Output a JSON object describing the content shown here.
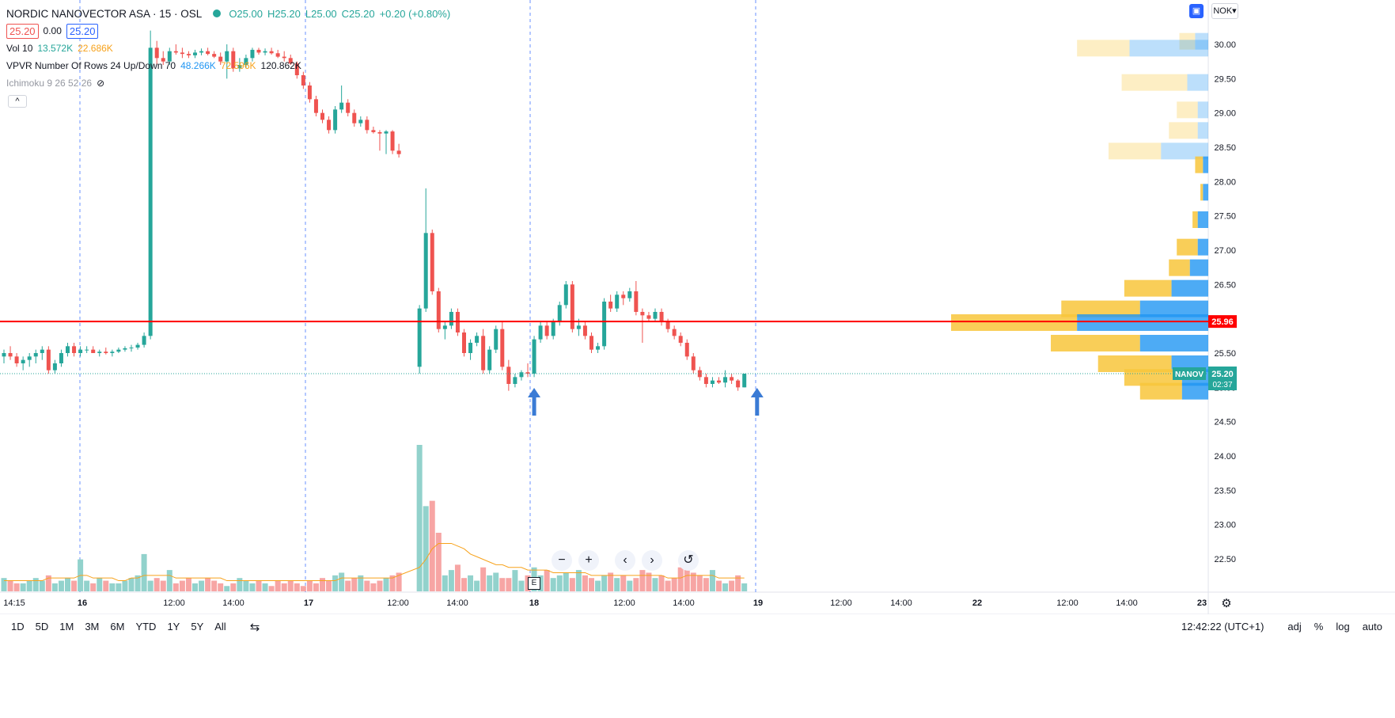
{
  "legend": {
    "title": "NORDIC NANOVECTOR ASA · 15 · OSL",
    "ohlc": {
      "o": "O25.00",
      "h": "H25.20",
      "l": "L25.00",
      "c": "C25.20",
      "chg": "+0.20 (+0.80%)"
    },
    "bid": "25.20",
    "spread": "0.00",
    "ask": "25.20",
    "vol_label": "Vol 10",
    "vol_v1": "13.572K",
    "vol_v2": "22.686K",
    "vpvr_label": "VPVR Number Of Rows 24 Up/Down 70",
    "vpvr_v1": "48.266K",
    "vpvr_v2": "72.596K",
    "vpvr_v3": "120.862K",
    "ichimoku_label": "Ichimoku 9 26 52 26"
  },
  "currency": "NOK",
  "navigation": {
    "zoom_out": "−",
    "zoom_in": "+",
    "left": "‹",
    "right": "›",
    "reset": "↺"
  },
  "event_badge": "E",
  "colors": {
    "up": "#26a69a",
    "down": "#ef5350",
    "vol_up": "#92d2cc",
    "vol_down": "#f7a5a4",
    "vp_up": "#2196f3",
    "vp_down": "#f8c63b",
    "line": "#ff0000",
    "vol_ma": "#f7a21b"
  },
  "timeframes": [
    "1D",
    "5D",
    "1M",
    "3M",
    "6M",
    "YTD",
    "1Y",
    "5Y",
    "All"
  ],
  "status": {
    "clock": "12:42:22 (UTC+1)",
    "adj": "adj",
    "pct": "%",
    "log": "log",
    "auto": "auto"
  },
  "chart_data": {
    "type": "candlestick",
    "yaxis_ticks": [
      "30.00",
      "29.50",
      "29.00",
      "28.50",
      "28.00",
      "27.50",
      "27.00",
      "26.50",
      "26.00",
      "25.50",
      "25.00",
      "24.50",
      "24.00",
      "23.50",
      "23.00",
      "22.50"
    ],
    "ylim": [
      22.2,
      30.3
    ],
    "xaxis_ticks": [
      "14:15",
      "16",
      "12:00",
      "14:00",
      "17",
      "12:00",
      "14:00",
      "18",
      "12:00",
      "14:00",
      "19",
      "12:00",
      "14:00",
      "22",
      "12:00",
      "14:00",
      "23"
    ],
    "horizontal_line": {
      "value": 25.96,
      "label": "25.96"
    },
    "last_price": {
      "value": 25.2,
      "symbol": "NANOV",
      "label": "25.20",
      "countdown": "02:37"
    },
    "candles": [
      [
        25.45,
        25.55,
        25.35,
        25.5
      ],
      [
        25.5,
        25.6,
        25.4,
        25.45
      ],
      [
        25.45,
        25.5,
        25.3,
        25.35
      ],
      [
        25.35,
        25.45,
        25.25,
        25.4
      ],
      [
        25.4,
        25.5,
        25.3,
        25.45
      ],
      [
        25.45,
        25.55,
        25.35,
        25.5
      ],
      [
        25.5,
        25.6,
        25.4,
        25.55
      ],
      [
        25.55,
        25.6,
        25.2,
        25.25
      ],
      [
        25.25,
        25.4,
        25.2,
        25.35
      ],
      [
        25.35,
        25.55,
        25.3,
        25.5
      ],
      [
        25.5,
        25.65,
        25.45,
        25.6
      ],
      [
        25.6,
        25.65,
        25.45,
        25.5
      ],
      [
        25.5,
        25.6,
        25.45,
        25.55
      ],
      [
        25.55,
        25.6,
        25.5,
        25.55
      ],
      [
        25.55,
        25.6,
        25.5,
        25.5
      ],
      [
        25.5,
        25.55,
        25.45,
        25.52
      ],
      [
        25.52,
        25.58,
        25.48,
        25.5
      ],
      [
        25.5,
        25.55,
        25.45,
        25.52
      ],
      [
        25.52,
        25.58,
        25.5,
        25.55
      ],
      [
        25.55,
        25.6,
        25.52,
        25.57
      ],
      [
        25.57,
        25.62,
        25.52,
        25.58
      ],
      [
        25.58,
        25.65,
        25.55,
        25.62
      ],
      [
        25.62,
        25.8,
        25.58,
        25.75
      ],
      [
        25.75,
        30.2,
        25.7,
        29.95
      ],
      [
        29.95,
        30.05,
        29.7,
        29.8
      ],
      [
        29.8,
        29.9,
        29.7,
        29.75
      ],
      [
        29.75,
        29.95,
        29.7,
        29.9
      ],
      [
        29.9,
        30.0,
        29.85,
        29.88
      ],
      [
        29.88,
        29.95,
        29.8,
        29.86
      ],
      [
        29.86,
        29.9,
        29.8,
        29.84
      ],
      [
        29.84,
        29.92,
        29.8,
        29.88
      ],
      [
        29.88,
        29.94,
        29.84,
        29.9
      ],
      [
        29.9,
        29.95,
        29.84,
        29.86
      ],
      [
        29.86,
        29.9,
        29.8,
        29.82
      ],
      [
        29.82,
        29.88,
        29.7,
        29.75
      ],
      [
        29.75,
        30.0,
        29.5,
        29.9
      ],
      [
        29.9,
        29.95,
        29.6,
        29.65
      ],
      [
        29.65,
        29.8,
        29.6,
        29.7
      ],
      [
        29.7,
        29.85,
        29.65,
        29.8
      ],
      [
        29.8,
        29.95,
        29.75,
        29.92
      ],
      [
        29.92,
        29.95,
        29.85,
        29.88
      ],
      [
        29.88,
        29.94,
        29.84,
        29.9
      ],
      [
        29.9,
        29.95,
        29.85,
        29.87
      ],
      [
        29.87,
        29.92,
        29.8,
        29.82
      ],
      [
        29.82,
        29.9,
        29.75,
        29.8
      ],
      [
        29.8,
        29.85,
        29.7,
        29.72
      ],
      [
        29.72,
        29.75,
        29.5,
        29.55
      ],
      [
        29.55,
        29.6,
        29.35,
        29.4
      ],
      [
        29.4,
        29.45,
        29.15,
        29.2
      ],
      [
        29.2,
        29.25,
        28.95,
        29.0
      ],
      [
        29.0,
        29.05,
        28.85,
        28.9
      ],
      [
        28.9,
        28.95,
        28.7,
        28.75
      ],
      [
        28.75,
        29.1,
        28.7,
        29.05
      ],
      [
        29.05,
        29.4,
        29.0,
        29.15
      ],
      [
        29.15,
        29.2,
        28.95,
        29.0
      ],
      [
        29.0,
        29.05,
        28.8,
        28.85
      ],
      [
        28.85,
        28.95,
        28.8,
        28.9
      ],
      [
        28.9,
        28.95,
        28.7,
        28.75
      ],
      [
        28.75,
        28.8,
        28.7,
        28.72
      ],
      [
        28.72,
        28.75,
        28.45,
        28.7
      ],
      [
        28.7,
        28.75,
        28.4,
        28.73
      ],
      [
        28.73,
        28.75,
        28.4,
        28.45
      ],
      [
        28.45,
        28.55,
        28.35,
        28.4
      ],
      [
        25.3,
        26.2,
        25.2,
        26.15
      ],
      [
        26.15,
        27.9,
        26.1,
        27.25
      ],
      [
        27.25,
        27.3,
        26.35,
        26.4
      ],
      [
        26.4,
        26.45,
        25.8,
        25.85
      ],
      [
        25.85,
        25.95,
        25.7,
        25.9
      ],
      [
        25.9,
        26.15,
        25.85,
        26.1
      ],
      [
        26.1,
        26.15,
        25.75,
        25.8
      ],
      [
        25.8,
        25.85,
        25.45,
        25.5
      ],
      [
        25.5,
        25.7,
        25.4,
        25.65
      ],
      [
        25.65,
        25.8,
        25.6,
        25.75
      ],
      [
        25.75,
        25.85,
        25.2,
        25.25
      ],
      [
        25.25,
        25.6,
        25.2,
        25.55
      ],
      [
        25.55,
        25.9,
        25.5,
        25.85
      ],
      [
        25.85,
        25.95,
        25.25,
        25.3
      ],
      [
        25.3,
        25.4,
        24.95,
        25.05
      ],
      [
        25.05,
        25.2,
        25.0,
        25.15
      ],
      [
        25.15,
        25.25,
        25.1,
        25.22
      ],
      [
        25.22,
        25.35,
        25.15,
        25.2
      ],
      [
        25.2,
        25.75,
        25.15,
        25.7
      ],
      [
        25.7,
        25.95,
        25.65,
        25.9
      ],
      [
        25.9,
        25.95,
        25.7,
        25.75
      ],
      [
        25.75,
        26.0,
        25.7,
        25.95
      ],
      [
        25.95,
        26.25,
        25.9,
        26.2
      ],
      [
        26.2,
        26.55,
        26.15,
        26.5
      ],
      [
        26.5,
        26.55,
        25.8,
        25.85
      ],
      [
        25.85,
        26.0,
        25.75,
        25.9
      ],
      [
        25.9,
        25.95,
        25.7,
        25.75
      ],
      [
        25.75,
        25.8,
        25.5,
        25.55
      ],
      [
        25.55,
        25.65,
        25.5,
        25.6
      ],
      [
        25.6,
        26.3,
        25.55,
        26.25
      ],
      [
        26.25,
        26.35,
        26.1,
        26.15
      ],
      [
        26.15,
        26.4,
        26.1,
        26.35
      ],
      [
        26.35,
        26.4,
        26.2,
        26.3
      ],
      [
        26.3,
        26.45,
        26.25,
        26.4
      ],
      [
        26.4,
        26.55,
        26.05,
        26.1
      ],
      [
        26.1,
        26.15,
        25.65,
        26.05
      ],
      [
        26.05,
        26.1,
        25.95,
        26.0
      ],
      [
        26.0,
        26.15,
        25.95,
        26.1
      ],
      [
        26.1,
        26.15,
        25.9,
        25.95
      ],
      [
        25.95,
        26.0,
        25.8,
        25.85
      ],
      [
        25.85,
        25.9,
        25.7,
        25.75
      ],
      [
        25.75,
        25.8,
        25.6,
        25.65
      ],
      [
        25.65,
        25.7,
        25.4,
        25.45
      ],
      [
        25.45,
        25.5,
        25.2,
        25.25
      ],
      [
        25.25,
        25.3,
        25.1,
        25.15
      ],
      [
        25.15,
        25.2,
        25.0,
        25.05
      ],
      [
        25.05,
        25.15,
        25.0,
        25.1
      ],
      [
        25.1,
        25.15,
        25.05,
        25.07
      ],
      [
        25.07,
        25.25,
        25.0,
        25.15
      ],
      [
        25.15,
        25.2,
        25.05,
        25.1
      ],
      [
        25.1,
        25.12,
        24.95,
        25.0
      ],
      [
        25.0,
        25.2,
        25.0,
        25.2
      ]
    ],
    "volumes": [
      5,
      4,
      3,
      3,
      4,
      5,
      4,
      6,
      3,
      4,
      5,
      4,
      12,
      4,
      3,
      5,
      4,
      3,
      3,
      4,
      5,
      6,
      14,
      4,
      5,
      4,
      8,
      3,
      4,
      5,
      3,
      4,
      5,
      4,
      3,
      2,
      3,
      5,
      4,
      3,
      4,
      3,
      2,
      4,
      3,
      4,
      3,
      2,
      4,
      3,
      5,
      4,
      6,
      7,
      4,
      5,
      6,
      4,
      3,
      4,
      5,
      6,
      7,
      55,
      32,
      34,
      22,
      6,
      8,
      10,
      5,
      6,
      4,
      9,
      6,
      7,
      5,
      5,
      8,
      4,
      6,
      9,
      6,
      8,
      5,
      6,
      7,
      5,
      8,
      6,
      5,
      4,
      6,
      7,
      5,
      6,
      4,
      5,
      8,
      7,
      5,
      6,
      4,
      5,
      9,
      12,
      7,
      6,
      5,
      8,
      4,
      3,
      4,
      6,
      3
    ],
    "volume_ma": [
      4,
      4,
      4,
      4,
      4,
      4,
      4,
      5,
      5,
      5,
      5,
      5,
      6,
      6,
      5,
      5,
      5,
      5,
      4,
      4,
      5,
      5,
      6,
      6,
      6,
      6,
      6,
      5,
      5,
      5,
      5,
      5,
      5,
      5,
      5,
      4,
      4,
      4,
      4,
      4,
      4,
      4,
      4,
      4,
      4,
      4,
      4,
      4,
      4,
      4,
      4,
      4,
      4,
      5,
      5,
      5,
      5,
      5,
      5,
      5,
      5,
      5,
      6,
      9,
      12,
      16,
      18,
      18,
      18,
      17,
      16,
      14,
      13,
      12,
      11,
      10,
      10,
      9,
      9,
      9,
      8,
      8,
      8,
      8,
      7,
      7,
      7,
      7,
      7,
      7,
      6,
      6,
      6,
      6,
      6,
      6,
      6,
      6,
      6,
      6,
      6,
      6,
      5,
      5,
      5,
      6,
      6,
      6,
      6,
      6,
      5,
      5,
      5,
      5,
      5
    ],
    "volume_profile": {
      "rows": [
        {
          "price": 30.05,
          "up": 5,
          "down": 6
        },
        {
          "price": 29.95,
          "up": 30,
          "down": 20
        },
        {
          "price": 29.45,
          "up": 8,
          "down": 25
        },
        {
          "price": 29.05,
          "up": 4,
          "down": 8
        },
        {
          "price": 28.75,
          "up": 4,
          "down": 11
        },
        {
          "price": 28.45,
          "up": 18,
          "down": 20
        },
        {
          "price": 28.25,
          "up": 2,
          "down": 3
        },
        {
          "price": 27.85,
          "up": 2,
          "down": 1
        },
        {
          "price": 27.45,
          "up": 4,
          "down": 2
        },
        {
          "price": 27.05,
          "up": 4,
          "down": 8
        },
        {
          "price": 26.75,
          "up": 7,
          "down": 8
        },
        {
          "price": 26.45,
          "up": 14,
          "down": 18
        },
        {
          "price": 26.15,
          "up": 26,
          "down": 30
        },
        {
          "price": 25.95,
          "up": 50,
          "down": 48
        },
        {
          "price": 25.65,
          "up": 26,
          "down": 34
        },
        {
          "price": 25.35,
          "up": 14,
          "down": 28
        },
        {
          "price": 25.15,
          "up": 10,
          "down": 22
        },
        {
          "price": 24.95,
          "up": 10,
          "down": 16
        }
      ]
    },
    "annotations": [
      {
        "type": "arrow-up",
        "candle": 81
      },
      {
        "type": "arrow-up",
        "candle": 116
      }
    ]
  }
}
